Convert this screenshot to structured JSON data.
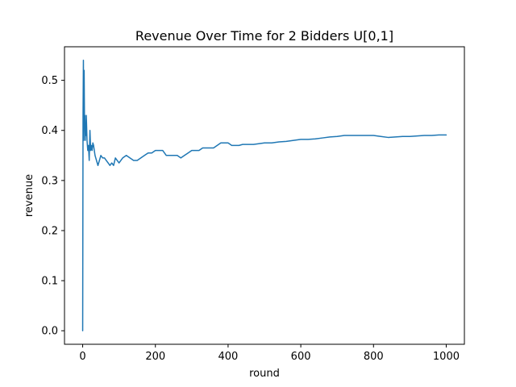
{
  "chart_data": {
    "type": "line",
    "title": "Revenue Over Time for 2 Bidders U[0,1]",
    "xlabel": "round",
    "ylabel": "revenue",
    "xlim": [
      -50,
      1050
    ],
    "ylim": [
      -0.027,
      0.567
    ],
    "grid": false,
    "legend": "none",
    "x_ticks": [
      0,
      200,
      400,
      600,
      800,
      1000
    ],
    "y_ticks": [
      0.0,
      0.1,
      0.2,
      0.3,
      0.4,
      0.5
    ],
    "x_tick_labels": [
      "0",
      "200",
      "400",
      "600",
      "800",
      "1000"
    ],
    "y_tick_labels": [
      "0.0",
      "0.1",
      "0.2",
      "0.3",
      "0.4",
      "0.5"
    ],
    "colors": {
      "series": "#1f77b4",
      "axes": "#000000",
      "background": "#ffffff"
    },
    "series": [
      {
        "x": [
          0,
          1,
          2,
          3,
          4,
          5,
          6,
          7,
          8,
          9,
          10,
          12,
          14,
          16,
          18,
          20,
          22,
          24,
          26,
          28,
          30,
          32,
          34,
          36,
          38,
          40,
          42,
          44,
          46,
          48,
          50,
          55,
          60,
          65,
          70,
          75,
          80,
          85,
          90,
          95,
          100,
          110,
          120,
          130,
          140,
          150,
          160,
          170,
          180,
          190,
          200,
          210,
          220,
          230,
          240,
          250,
          260,
          270,
          280,
          290,
          300,
          310,
          320,
          330,
          340,
          350,
          360,
          370,
          380,
          390,
          400,
          410,
          420,
          430,
          440,
          450,
          460,
          470,
          480,
          490,
          500,
          520,
          540,
          560,
          580,
          600,
          620,
          640,
          660,
          680,
          700,
          720,
          740,
          760,
          780,
          800,
          820,
          840,
          860,
          880,
          900,
          920,
          940,
          960,
          980,
          1000
        ],
        "y": [
          0.0,
          0.43,
          0.54,
          0.38,
          0.52,
          0.42,
          0.43,
          0.38,
          0.41,
          0.39,
          0.43,
          0.38,
          0.36,
          0.37,
          0.34,
          0.4,
          0.36,
          0.37,
          0.36,
          0.375,
          0.37,
          0.36,
          0.35,
          0.345,
          0.34,
          0.335,
          0.33,
          0.335,
          0.34,
          0.345,
          0.35,
          0.345,
          0.345,
          0.34,
          0.335,
          0.33,
          0.335,
          0.33,
          0.345,
          0.34,
          0.335,
          0.345,
          0.35,
          0.345,
          0.34,
          0.34,
          0.345,
          0.35,
          0.355,
          0.355,
          0.36,
          0.36,
          0.36,
          0.35,
          0.35,
          0.35,
          0.35,
          0.345,
          0.35,
          0.355,
          0.36,
          0.36,
          0.36,
          0.365,
          0.365,
          0.365,
          0.365,
          0.37,
          0.375,
          0.375,
          0.375,
          0.37,
          0.37,
          0.37,
          0.372,
          0.372,
          0.372,
          0.372,
          0.373,
          0.374,
          0.375,
          0.375,
          0.377,
          0.378,
          0.38,
          0.382,
          0.382,
          0.383,
          0.385,
          0.387,
          0.388,
          0.39,
          0.39,
          0.39,
          0.39,
          0.39,
          0.388,
          0.386,
          0.387,
          0.388,
          0.388,
          0.389,
          0.39,
          0.39,
          0.391,
          0.391
        ]
      }
    ]
  }
}
